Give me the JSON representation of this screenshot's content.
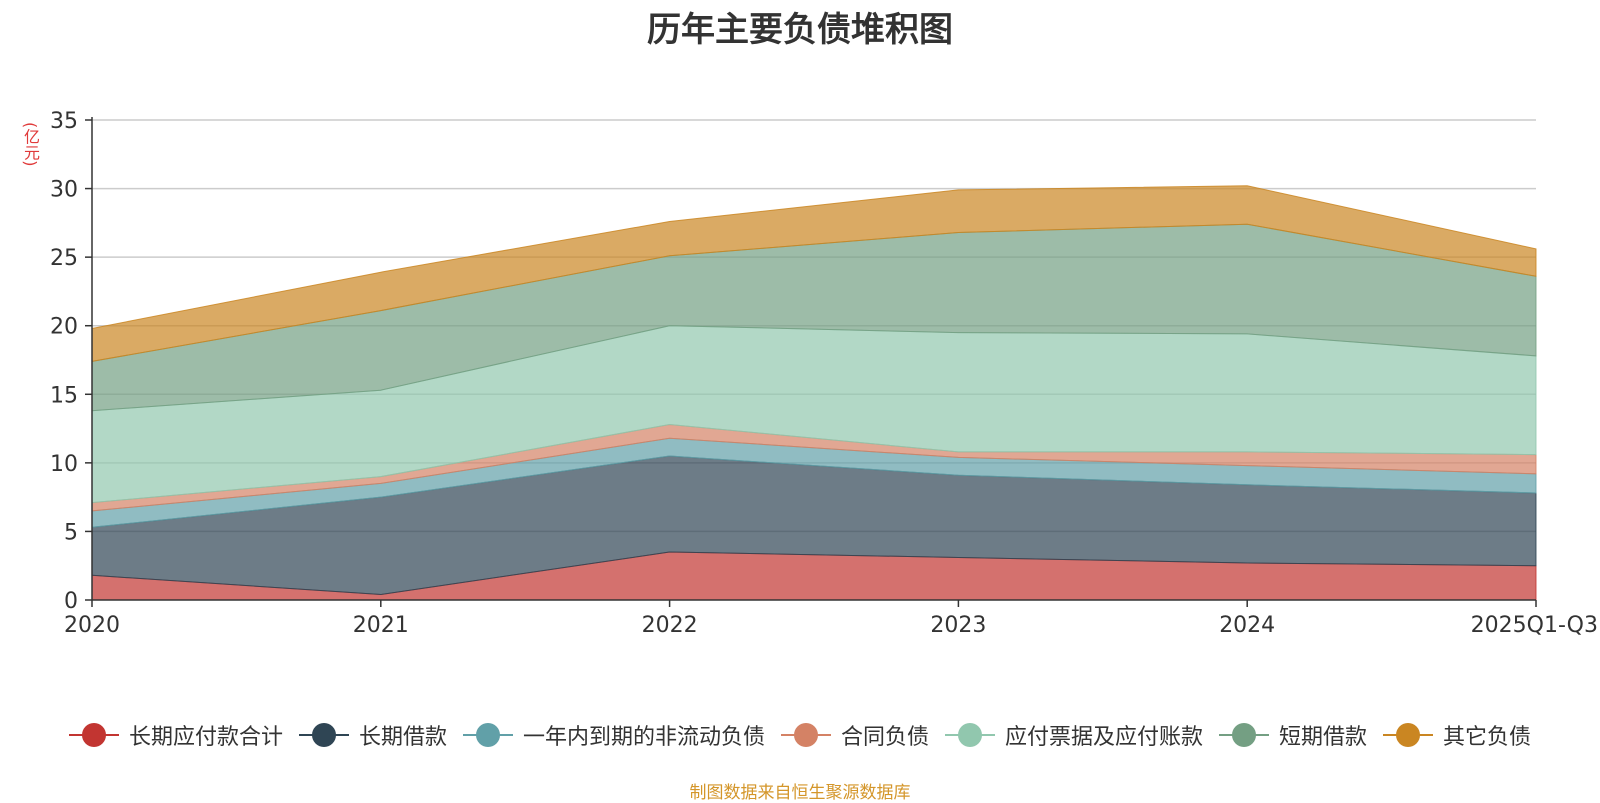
{
  "chart_data": {
    "type": "area",
    "stacked": true,
    "title": "历年主要负债堆积图",
    "unit_label": "(亿元)",
    "categories": [
      "2020",
      "2021",
      "2022",
      "2023",
      "2024",
      "2025Q1-Q3"
    ],
    "yticks": [
      "0",
      "5",
      "10",
      "15",
      "20",
      "25",
      "30",
      "35"
    ],
    "ylim": [
      0,
      35
    ],
    "grid": true,
    "legend_position": "bottom",
    "series": [
      {
        "name": "长期应付款合计",
        "color": "#c23531",
        "values": [
          1.8,
          0.4,
          3.5,
          3.1,
          2.7,
          2.5
        ]
      },
      {
        "name": "长期借款",
        "color": "#2f4554",
        "values": [
          3.5,
          7.1,
          7.0,
          6.0,
          5.7,
          5.3
        ]
      },
      {
        "name": "一年内到期的非流动负债",
        "color": "#61a0a8",
        "values": [
          1.2,
          1.0,
          1.3,
          1.3,
          1.4,
          1.4
        ]
      },
      {
        "name": "合同负债",
        "color": "#d48265",
        "values": [
          0.6,
          0.5,
          1.0,
          0.4,
          1.0,
          1.4
        ]
      },
      {
        "name": "应付票据及应付账款",
        "color": "#91c7ae",
        "values": [
          6.7,
          6.3,
          7.2,
          8.7,
          8.6,
          7.2
        ]
      },
      {
        "name": "短期借款",
        "color": "#749f83",
        "values": [
          3.6,
          5.8,
          5.1,
          7.3,
          8.0,
          5.8
        ]
      },
      {
        "name": "其它负债",
        "color": "#ca8622",
        "values": [
          2.4,
          2.8,
          2.5,
          3.1,
          2.8,
          2.0
        ]
      }
    ],
    "source_note": "制图数据来自恒生聚源数据库"
  }
}
